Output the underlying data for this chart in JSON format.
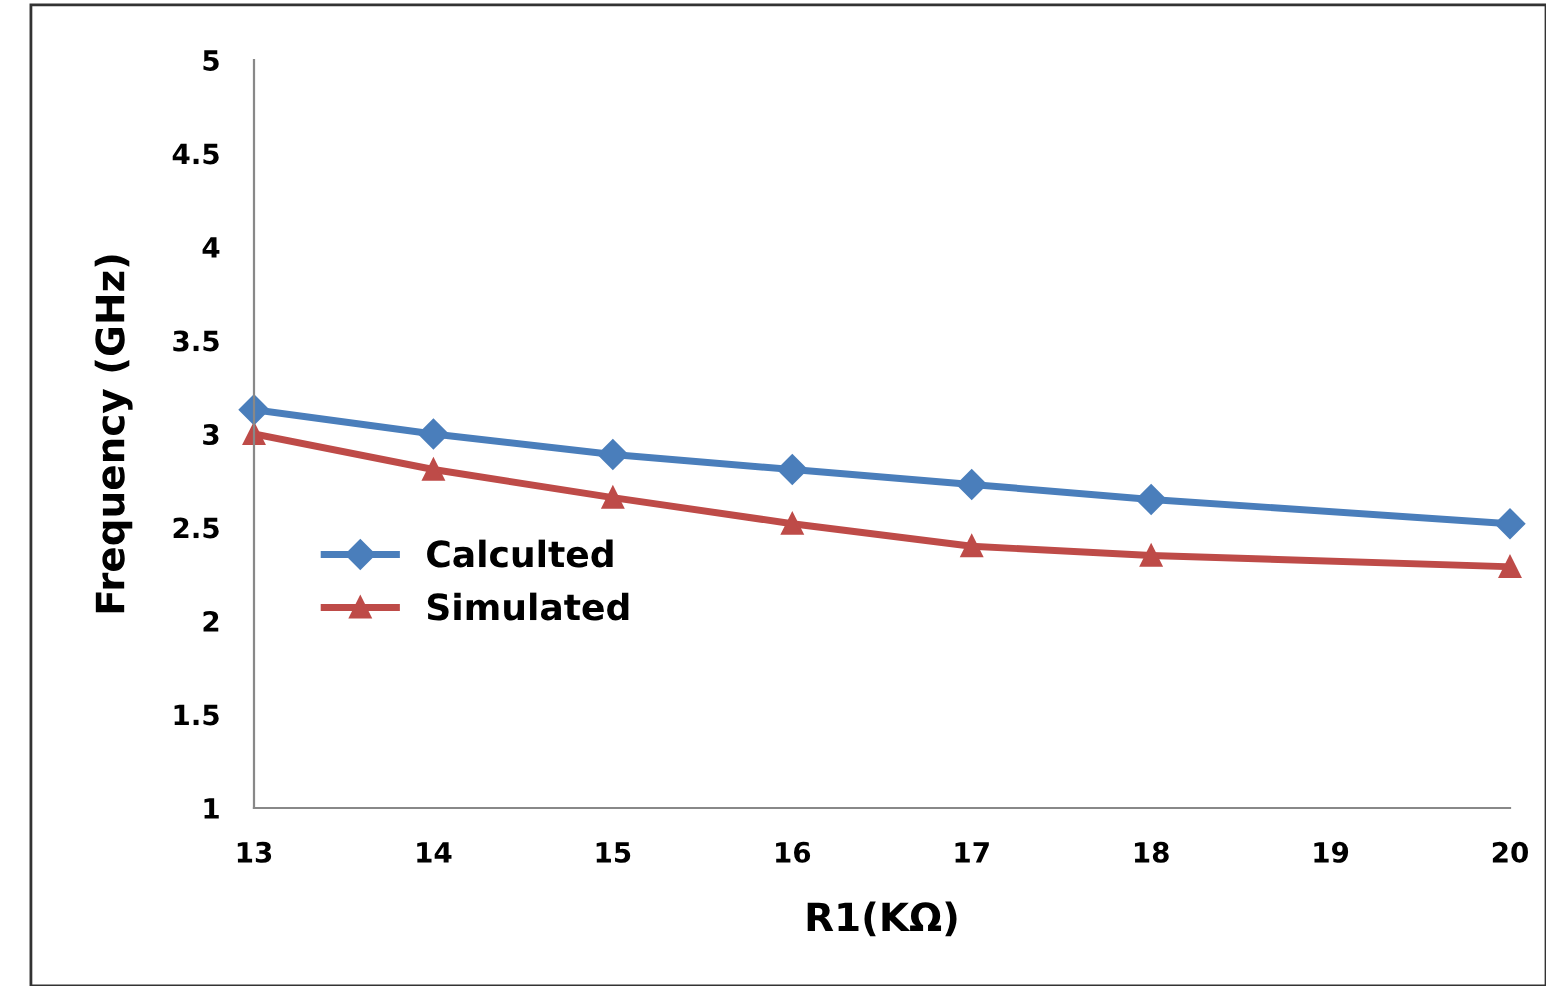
{
  "chart_data": {
    "type": "line",
    "xlabel": "R1(KΩ)",
    "ylabel": "Frequency (GHz)",
    "x": [
      13,
      14,
      15,
      16,
      17,
      18,
      20
    ],
    "series": [
      {
        "name": "Calculted",
        "color": "#4a7ebb",
        "marker": "diamond",
        "values": [
          3.13,
          3.0,
          2.89,
          2.81,
          2.73,
          2.65,
          2.52
        ]
      },
      {
        "name": "Simulated",
        "color": "#be4b48",
        "marker": "triangle",
        "values": [
          3.0,
          2.81,
          2.66,
          2.52,
          2.4,
          2.35,
          2.29
        ]
      }
    ],
    "xlim": [
      13,
      20
    ],
    "xticks": [
      13,
      14,
      15,
      16,
      17,
      18,
      19,
      20
    ],
    "ylim": [
      1,
      5
    ],
    "yticks": [
      1,
      1.5,
      2,
      2.5,
      3,
      3.5,
      4,
      4.5,
      5
    ],
    "grid": false,
    "legend": "left",
    "line_style": "solid"
  }
}
